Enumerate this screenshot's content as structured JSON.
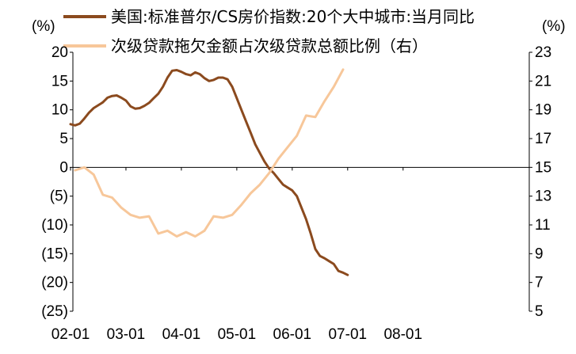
{
  "chart_data": {
    "type": "line",
    "left_unit": "(%)",
    "right_unit": "(%)",
    "legend": [
      {
        "name": "美国:标准普尔/CS房价指数:20个大中城市:当月同比",
        "color": "#8B4A1E"
      },
      {
        "name": "次级贷款拖欠金额占次级贷款总额比例（右）",
        "color": "#F7C79A"
      }
    ],
    "x_ticks": [
      "02-01",
      "03-01",
      "04-01",
      "05-01",
      "06-01",
      "07-01",
      "08-01"
    ],
    "left_axis": {
      "min": -25,
      "max": 20,
      "step": 5,
      "tick_labels": [
        "20",
        "15",
        "10",
        "5",
        "0",
        "(5)",
        "(10)",
        "(15)",
        "(20)",
        "(25)"
      ]
    },
    "right_axis": {
      "min": 5,
      "max": 23,
      "step": 2,
      "tick_labels": [
        "23",
        "21",
        "19",
        "17",
        "15",
        "13",
        "11",
        "9",
        "7",
        "5"
      ]
    },
    "series": [
      {
        "name": "美国:标准普尔/CS房价指数:20个大中城市:当月同比",
        "axis": "left",
        "points": [
          [
            "2002-01",
            7.5
          ],
          [
            "2002-02",
            7.3
          ],
          [
            "2002-03",
            7.6
          ],
          [
            "2002-04",
            8.5
          ],
          [
            "2002-05",
            9.5
          ],
          [
            "2002-06",
            10.3
          ],
          [
            "2002-07",
            10.8
          ],
          [
            "2002-08",
            11.3
          ],
          [
            "2002-09",
            12.1
          ],
          [
            "2002-10",
            12.4
          ],
          [
            "2002-11",
            12.5
          ],
          [
            "2002-12",
            12.1
          ],
          [
            "2003-01",
            11.6
          ],
          [
            "2003-02",
            10.6
          ],
          [
            "2003-03",
            10.2
          ],
          [
            "2003-04",
            10.3
          ],
          [
            "2003-05",
            10.7
          ],
          [
            "2003-06",
            11.2
          ],
          [
            "2003-07",
            12.0
          ],
          [
            "2003-08",
            12.8
          ],
          [
            "2003-09",
            14.0
          ],
          [
            "2003-10",
            15.6
          ],
          [
            "2003-11",
            16.8
          ],
          [
            "2003-12",
            16.9
          ],
          [
            "2004-01",
            16.6
          ],
          [
            "2004-02",
            16.2
          ],
          [
            "2004-03",
            16.0
          ],
          [
            "2004-04",
            16.5
          ],
          [
            "2004-05",
            16.2
          ],
          [
            "2004-06",
            15.5
          ],
          [
            "2004-07",
            15.0
          ],
          [
            "2004-08",
            15.2
          ],
          [
            "2004-09",
            15.6
          ],
          [
            "2004-10",
            15.6
          ],
          [
            "2004-11",
            15.3
          ],
          [
            "2004-12",
            14.0
          ],
          [
            "2005-01",
            12.0
          ],
          [
            "2005-02",
            10.0
          ],
          [
            "2005-03",
            8.0
          ],
          [
            "2005-04",
            6.0
          ],
          [
            "2005-05",
            4.0
          ],
          [
            "2005-06",
            2.5
          ],
          [
            "2005-07",
            1.0
          ],
          [
            "2005-08",
            -0.2
          ],
          [
            "2005-09",
            -1.0
          ],
          [
            "2005-10",
            -2.0
          ],
          [
            "2005-11",
            -3.0
          ],
          [
            "2005-12",
            -3.5
          ],
          [
            "2006-01",
            -4.0
          ],
          [
            "2006-02",
            -5.0
          ],
          [
            "2006-03",
            -7.0
          ],
          [
            "2006-04",
            -9.0
          ],
          [
            "2006-05",
            -11.5
          ],
          [
            "2006-06",
            -14.2
          ],
          [
            "2006-07",
            -15.4
          ],
          [
            "2006-08",
            -15.8
          ],
          [
            "2006-09",
            -16.3
          ],
          [
            "2006-10",
            -16.8
          ],
          [
            "2006-11",
            -18.0
          ],
          [
            "2006-12",
            -18.3
          ],
          [
            "2007-01",
            -18.7
          ]
        ]
      },
      {
        "name": "次级贷款拖欠金额占次级贷款总额比例（右）",
        "axis": "right",
        "points": [
          [
            "2002-02",
            14.8
          ],
          [
            "2002-04",
            15.0
          ],
          [
            "2002-06",
            14.5
          ],
          [
            "2002-08",
            13.1
          ],
          [
            "2002-10",
            12.9
          ],
          [
            "2002-12",
            12.2
          ],
          [
            "2003-02",
            11.7
          ],
          [
            "2003-04",
            11.5
          ],
          [
            "2003-06",
            11.6
          ],
          [
            "2003-08",
            10.4
          ],
          [
            "2003-10",
            10.6
          ],
          [
            "2003-12",
            10.2
          ],
          [
            "2004-02",
            10.5
          ],
          [
            "2004-04",
            10.2
          ],
          [
            "2004-06",
            10.6
          ],
          [
            "2004-08",
            11.6
          ],
          [
            "2004-10",
            11.5
          ],
          [
            "2004-12",
            11.7
          ],
          [
            "2005-02",
            12.4
          ],
          [
            "2005-04",
            13.2
          ],
          [
            "2005-06",
            13.8
          ],
          [
            "2005-08",
            14.6
          ],
          [
            "2005-10",
            15.6
          ],
          [
            "2005-12",
            16.4
          ],
          [
            "2006-02",
            17.2
          ],
          [
            "2006-04",
            18.6
          ],
          [
            "2006-06",
            18.5
          ],
          [
            "2006-08",
            19.6
          ],
          [
            "2006-10",
            20.6
          ],
          [
            "2006-12",
            21.8
          ]
        ]
      }
    ]
  }
}
